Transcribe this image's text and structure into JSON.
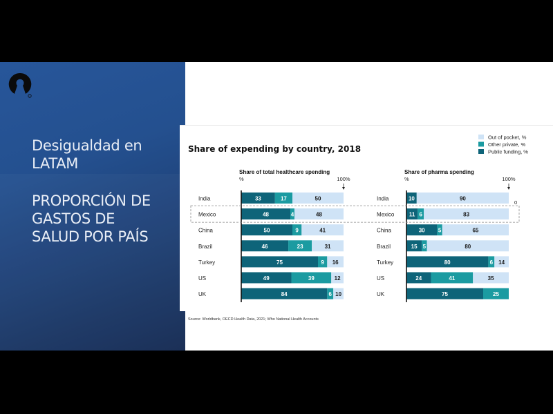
{
  "slide": {
    "title": "Desigualdad en LATAM",
    "title_lines": [
      "Desigualdad en",
      "LATAM"
    ],
    "subtitle": "PROPORCIÓN DE GASTOS DE SALUD POR PAÍS",
    "subtitle_lines": [
      "PROPORCIÓN DE",
      "GASTOS DE",
      "SALUD POR PAÍS"
    ],
    "logo_icon": "open-source-keyhole-logo",
    "panel_color": "#24508f"
  },
  "source": "Source: Worldbank, OECD Health Data, 2021; Who National Health Accounts",
  "chart_data": {
    "type": "bar",
    "orientation": "horizontal-stacked-100",
    "title": "Share of expending by country, 2018",
    "legend": [
      {
        "name": "Out of pocket, %",
        "color": "#cfe3f6"
      },
      {
        "name": "Other private, %",
        "color": "#1b9ba1"
      },
      {
        "name": "Public funding, %",
        "color": "#0e6479"
      }
    ],
    "legend_position": "top-right",
    "categories": [
      "India",
      "Mexico",
      "China",
      "Brazil",
      "Turkey",
      "US",
      "UK"
    ],
    "highlighted_category": "Mexico",
    "panels": [
      {
        "title": "Share of total healthcare spending",
        "unit": "%",
        "max_label": "100%",
        "series": [
          {
            "name": "Public funding, %",
            "values": [
              33,
              48,
              50,
              46,
              75,
              49,
              84
            ]
          },
          {
            "name": "Other private, %",
            "values": [
              17,
              4,
              9,
              23,
              9,
              39,
              6
            ]
          },
          {
            "name": "Out of pocket, %",
            "values": [
              50,
              48,
              41,
              31,
              16,
              12,
              10
            ]
          }
        ]
      },
      {
        "title": "Share of pharma spending",
        "unit": "%",
        "max_label": "100%",
        "annotation": "0",
        "series": [
          {
            "name": "Public funding, %",
            "values": [
              10,
              11,
              30,
              15,
              80,
              24,
              75
            ]
          },
          {
            "name": "Other private, %",
            "values": [
              0,
              6,
              5,
              5,
              6,
              41,
              25
            ]
          },
          {
            "name": "Out of pocket, %",
            "values": [
              90,
              83,
              65,
              80,
              14,
              35,
              0
            ]
          }
        ]
      }
    ],
    "xlim": [
      0,
      100
    ]
  }
}
